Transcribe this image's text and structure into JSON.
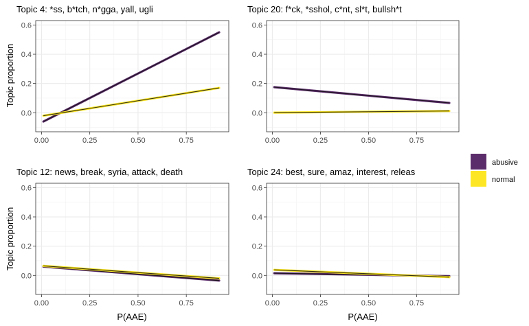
{
  "chart_data": {
    "type": "line",
    "ylabel": "Topic proportion",
    "xlabel": "P(AAE)",
    "x_range": [
      -0.03,
      0.97
    ],
    "y_range": [
      -0.13,
      0.63
    ],
    "x_ticks": [
      "0.00",
      "0.25",
      "0.50",
      "0.75"
    ],
    "x_tick_values": [
      0,
      0.25,
      0.5,
      0.75
    ],
    "y_ticks": [
      "0.0",
      "0.2",
      "0.4",
      "0.6"
    ],
    "y_tick_values": [
      0,
      0.2,
      0.4,
      0.6
    ],
    "legend": [
      {
        "name": "abusive",
        "color": "#5c2d6b"
      },
      {
        "name": "normal",
        "color": "#fde725"
      }
    ],
    "panels": [
      {
        "title": "Topic 4: *ss, b*tch, n*gga, yall, ugli",
        "series": [
          {
            "name": "abusive",
            "x": [
              0.01,
              0.92
            ],
            "y": [
              -0.06,
              0.55
            ],
            "color": "#5c2d6b"
          },
          {
            "name": "normal",
            "x": [
              0.01,
              0.92
            ],
            "y": [
              -0.02,
              0.17
            ],
            "color": "#fde725"
          }
        ]
      },
      {
        "title": "Topic 20: f*ck, *sshol, c*nt, sl*t, bullsh*t",
        "series": [
          {
            "name": "abusive",
            "x": [
              0.01,
              0.92
            ],
            "y": [
              0.175,
              0.067
            ],
            "color": "#5c2d6b"
          },
          {
            "name": "normal",
            "x": [
              0.01,
              0.92
            ],
            "y": [
              0.001,
              0.012
            ],
            "color": "#fde725"
          }
        ]
      },
      {
        "title": "Topic 12: news, break, syria, attack, death",
        "series": [
          {
            "name": "abusive",
            "x": [
              0.01,
              0.92
            ],
            "y": [
              0.06,
              -0.035
            ],
            "color": "#5c2d6b"
          },
          {
            "name": "normal",
            "x": [
              0.01,
              0.92
            ],
            "y": [
              0.065,
              -0.02
            ],
            "color": "#fde725"
          }
        ]
      },
      {
        "title": "Topic 24: best, sure, amaz, interest, releas",
        "series": [
          {
            "name": "abusive",
            "x": [
              0.01,
              0.92
            ],
            "y": [
              0.015,
              -0.005
            ],
            "color": "#5c2d6b"
          },
          {
            "name": "normal",
            "x": [
              0.01,
              0.92
            ],
            "y": [
              0.038,
              -0.012
            ],
            "color": "#fde725"
          }
        ]
      }
    ]
  }
}
